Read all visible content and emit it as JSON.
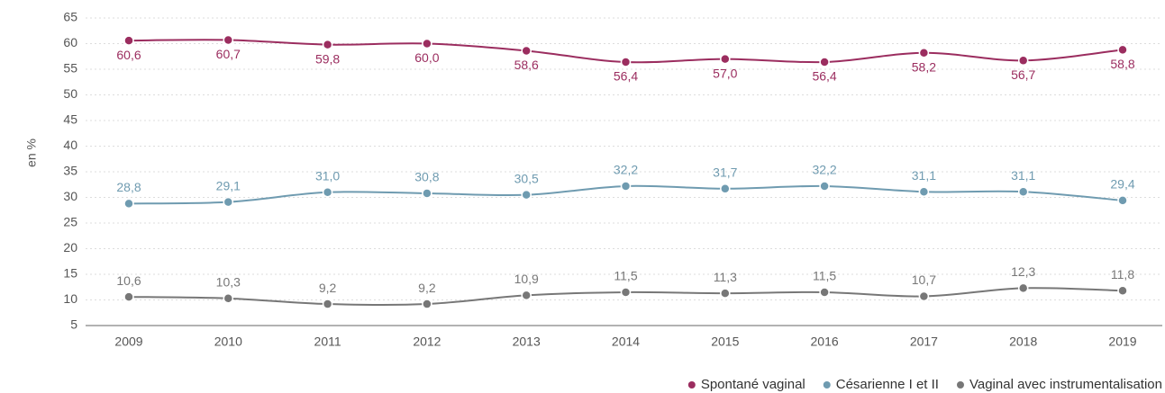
{
  "chart_data": {
    "type": "line",
    "y_label": "en %",
    "categories": [
      "2009",
      "2010",
      "2011",
      "2012",
      "2013",
      "2014",
      "2015",
      "2016",
      "2017",
      "2018",
      "2019"
    ],
    "series": [
      {
        "name": "Spontané vaginal",
        "color": "#9b2d5f",
        "values": [
          60.6,
          60.7,
          59.8,
          60.0,
          58.6,
          56.4,
          57.0,
          56.4,
          58.2,
          56.7,
          58.8
        ],
        "value_labels": [
          "60,6",
          "60,7",
          "59,8",
          "60,0",
          "58,6",
          "56,4",
          "57,0",
          "56,4",
          "58,2",
          "56,7",
          "58,8"
        ]
      },
      {
        "name": "Césarienne I et II",
        "color": "#6f9bb0",
        "values": [
          28.8,
          29.1,
          31.0,
          30.8,
          30.5,
          32.2,
          31.7,
          32.2,
          31.1,
          31.1,
          29.4
        ],
        "value_labels": [
          "28,8",
          "29,1",
          "31,0",
          "30,8",
          "30,5",
          "32,2",
          "31,7",
          "32,2",
          "31,1",
          "31,1",
          "29,4"
        ]
      },
      {
        "name": "Vaginal avec instrumentalisation",
        "color": "#777777",
        "values": [
          10.6,
          10.3,
          9.2,
          9.2,
          10.9,
          11.5,
          11.3,
          11.5,
          10.7,
          12.3,
          11.8
        ],
        "value_labels": [
          "10,6",
          "10,3",
          "9,2",
          "9,2",
          "10,9",
          "11,5",
          "11,3",
          "11,5",
          "10,7",
          "12,3",
          "11,8"
        ]
      }
    ],
    "ylim": [
      5,
      65
    ],
    "yticks": [
      5,
      10,
      15,
      20,
      25,
      30,
      35,
      40,
      45,
      50,
      55,
      60,
      65
    ],
    "grid": true,
    "legend": "bottom-right"
  }
}
